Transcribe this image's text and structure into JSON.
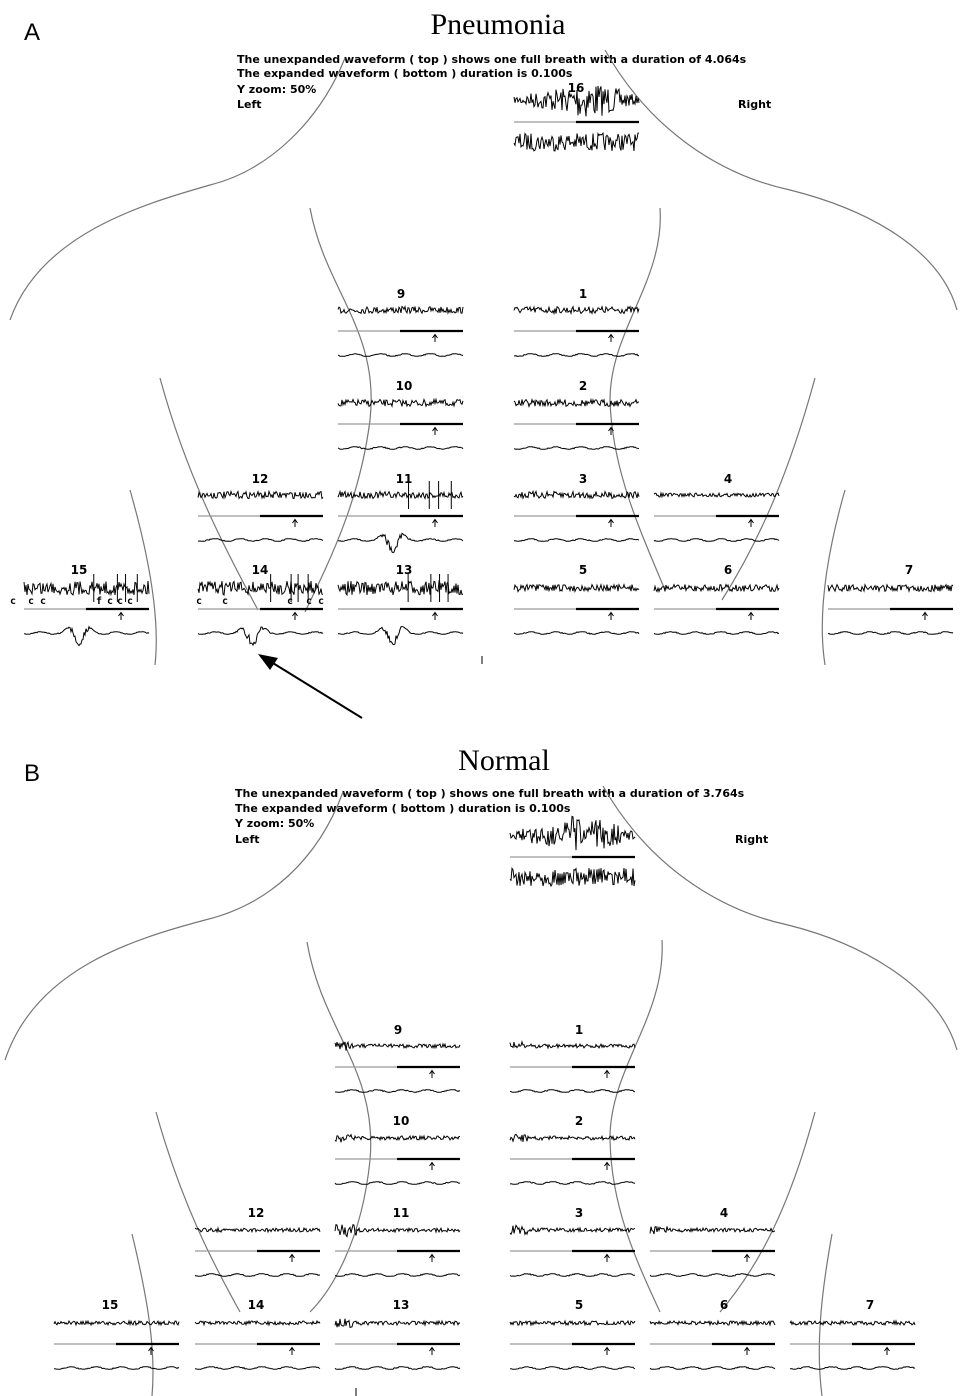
{
  "panels": [
    {
      "letter": "A",
      "title": "Pneumonia",
      "info_lines": [
        "The unexpanded waveform ( top ) shows one full breath with a duration of 4.064s",
        "The expanded waveform ( bottom ) duration is 0.100s",
        "Y zoom:  50%",
        "Left"
      ],
      "right_label": "Right",
      "channels": [
        "16",
        "9",
        "1",
        "10",
        "2",
        "12",
        "11",
        "3",
        "4",
        "15",
        "14",
        "13",
        "5",
        "6",
        "7"
      ],
      "crackle_marks": [
        "c",
        "c",
        "c",
        "f",
        "c",
        "c",
        "c",
        "c",
        "c",
        "c",
        "c",
        "c"
      ]
    },
    {
      "letter": "B",
      "title": "Normal",
      "info_lines": [
        "The unexpanded waveform ( top ) shows one full breath with a duration of 3.764s",
        "The expanded waveform ( bottom ) duration is 0.100s",
        "Y zoom:  50%",
        "Left"
      ],
      "right_label": "Right",
      "channels": [
        "9",
        "1",
        "10",
        "2",
        "12",
        "11",
        "3",
        "4",
        "15",
        "14",
        "13",
        "5",
        "6",
        "7"
      ]
    }
  ],
  "colors": {
    "outline": "#777777",
    "waveform": "#000000"
  }
}
